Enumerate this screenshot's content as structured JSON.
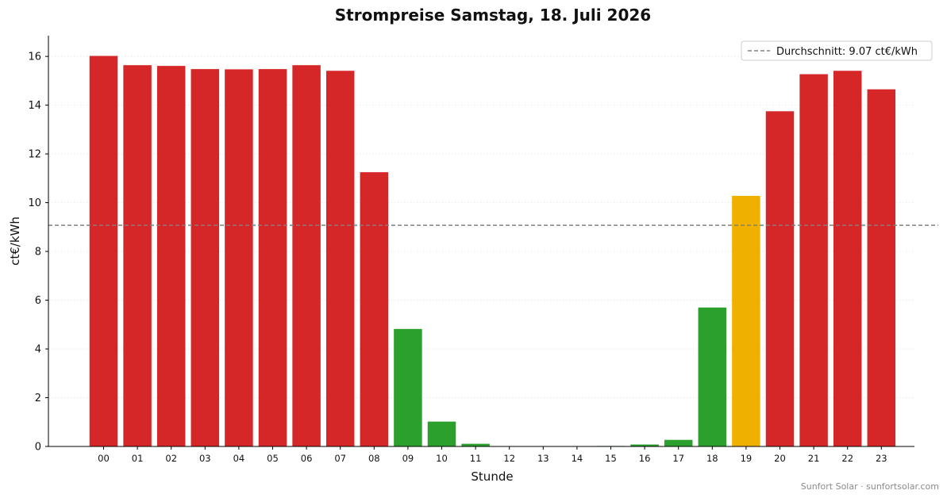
{
  "chart_data": {
    "type": "bar",
    "title": "Strompreise Samstag, 18. Juli 2026",
    "xlabel": "Stunde",
    "ylabel": "ct€/kWh",
    "ylim": [
      0,
      16.85
    ],
    "yticks": [
      0,
      2,
      4,
      6,
      8,
      10,
      12,
      14,
      16
    ],
    "grid": "y-dotted",
    "legend_position": "top-right",
    "categories": [
      "00",
      "01",
      "02",
      "03",
      "04",
      "05",
      "06",
      "07",
      "08",
      "09",
      "10",
      "11",
      "12",
      "13",
      "14",
      "15",
      "16",
      "17",
      "18",
      "19",
      "20",
      "21",
      "22",
      "23"
    ],
    "values": [
      16.02,
      15.64,
      15.61,
      15.48,
      15.47,
      15.48,
      15.64,
      15.41,
      11.25,
      4.82,
      1.02,
      0.11,
      0.01,
      0.0,
      0.0,
      0.02,
      0.08,
      0.27,
      5.7,
      10.28,
      13.75,
      15.27,
      15.41,
      14.65
    ],
    "bar_colors": [
      "#d62728",
      "#d62728",
      "#d62728",
      "#d62728",
      "#d62728",
      "#d62728",
      "#d62728",
      "#d62728",
      "#d62728",
      "#2ca02c",
      "#2ca02c",
      "#2ca02c",
      "#2ca02c",
      "#2ca02c",
      "#2ca02c",
      "#2ca02c",
      "#2ca02c",
      "#2ca02c",
      "#2ca02c",
      "#f0b000",
      "#d62728",
      "#d62728",
      "#d62728",
      "#d62728"
    ],
    "average": {
      "value": 9.07,
      "label": "Durchschnitt: 9.07 ct€/kWh",
      "color": "#808080"
    },
    "source_note": "Sunfort Solar · sunfortsolar.com"
  }
}
